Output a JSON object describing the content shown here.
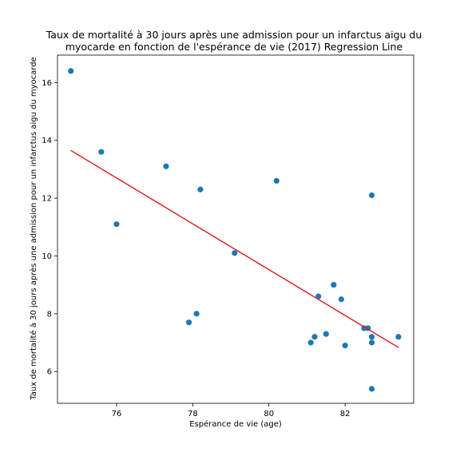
{
  "chart_data": {
    "type": "scatter",
    "title_lines": [
      "Taux de mortalité à 30 jours après une admission pour un infarctus aigu du",
      "myocarde en fonction de l'espérance de vie (2017) Regression Line"
    ],
    "xlabel": "Espérance de vie (age)",
    "ylabel": "Taux de mortalité à 30 jours après une admission pour un infarctus aigu du myocarde",
    "xlim": [
      74.45,
      83.8
    ],
    "ylim": [
      4.9,
      16.95
    ],
    "xticks": [
      76,
      78,
      80,
      82
    ],
    "yticks": [
      6,
      8,
      10,
      12,
      14,
      16
    ],
    "grid": false,
    "point_color": "#1f77b4",
    "line_color": "#d62728",
    "points": [
      {
        "x": 74.8,
        "y": 16.4
      },
      {
        "x": 75.6,
        "y": 13.6
      },
      {
        "x": 76.0,
        "y": 11.1
      },
      {
        "x": 77.3,
        "y": 13.1
      },
      {
        "x": 77.9,
        "y": 7.7
      },
      {
        "x": 78.1,
        "y": 8.0
      },
      {
        "x": 78.2,
        "y": 12.3
      },
      {
        "x": 79.1,
        "y": 10.1
      },
      {
        "x": 80.2,
        "y": 12.6
      },
      {
        "x": 81.1,
        "y": 7.0
      },
      {
        "x": 81.2,
        "y": 7.2
      },
      {
        "x": 81.3,
        "y": 8.6
      },
      {
        "x": 81.5,
        "y": 7.3
      },
      {
        "x": 81.7,
        "y": 9.0
      },
      {
        "x": 81.9,
        "y": 8.5
      },
      {
        "x": 82.0,
        "y": 6.9
      },
      {
        "x": 82.5,
        "y": 7.5
      },
      {
        "x": 82.6,
        "y": 7.5
      },
      {
        "x": 82.7,
        "y": 7.2
      },
      {
        "x": 82.7,
        "y": 7.0
      },
      {
        "x": 82.7,
        "y": 12.1
      },
      {
        "x": 82.7,
        "y": 5.4
      },
      {
        "x": 83.4,
        "y": 7.2
      }
    ],
    "regression_line": {
      "x": [
        74.8,
        83.4
      ],
      "y": [
        13.65,
        6.83
      ]
    }
  }
}
